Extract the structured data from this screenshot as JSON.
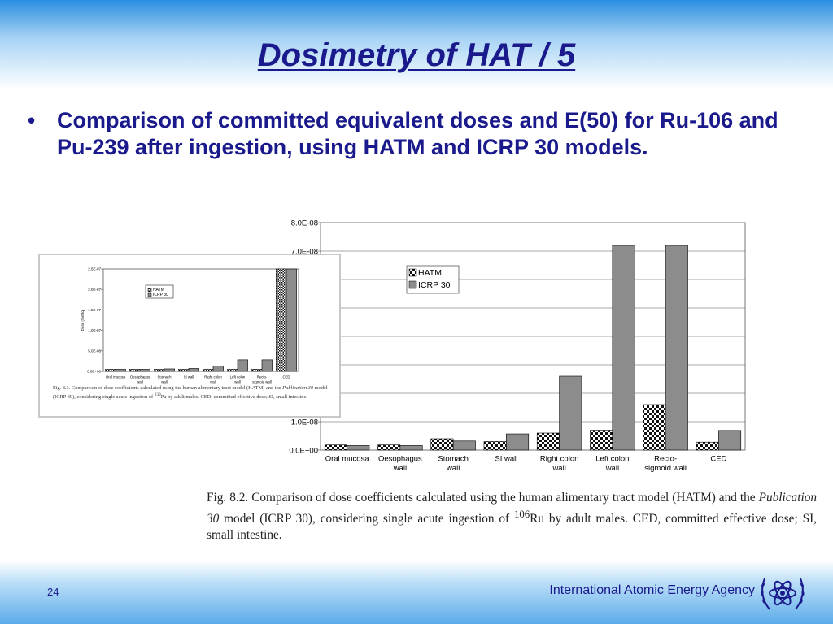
{
  "slide": {
    "title": "Dosimetry of HAT / 5",
    "bullet": "Comparison of committed equivalent doses and E(50) for Ru-106 and Pu-239 after ingestion, using HATM and ICRP 30 models.",
    "page_number": "24",
    "footer_org": "International Atomic Energy Agency",
    "logo_icon": "iaea-atom-wreath-icon"
  },
  "colors": {
    "title": "#1a1a8c",
    "icrp_bar": "#8c8c8c",
    "hatm_bar": "#222222",
    "footer_top": "#5cacea"
  },
  "chart_data": [
    {
      "type": "bar",
      "title": "",
      "xlabel": "",
      "ylabel": "",
      "ylim": [
        0,
        8e-08
      ],
      "grid": true,
      "legend_position": "top-center",
      "yticks": [
        "0.0E+00",
        "1.0E-08",
        "7.0E-08",
        "8.0E-08"
      ],
      "categories": [
        "Oral mucosa",
        "Oesophagus wall",
        "Stomach wall",
        "SI wall",
        "Right colon wall",
        "Left colon wall",
        "Recto-sigmoid wall",
        "CED"
      ],
      "series": [
        {
          "name": "HATM",
          "values": [
            1.8e-09,
            1.8e-09,
            4e-09,
            3e-09,
            6e-09,
            7e-09,
            1.6e-08,
            2.8e-09
          ]
        },
        {
          "name": "ICRP 30",
          "values": [
            1.6e-09,
            1.6e-09,
            3.2e-09,
            5.7e-09,
            2.6e-08,
            7.2e-08,
            7.2e-08,
            6.9e-09
          ]
        }
      ],
      "caption_parts": [
        "Fig. 8.2.  Comparison of dose coefficients calculated using the human alimentary tract model (HATM) and the ",
        "Publication 30",
        " model (ICRP 30), considering single acute ingestion of ",
        "106",
        "Ru by adult males. CED, committed effective dose; SI, small intestine."
      ]
    },
    {
      "type": "bar",
      "title": "",
      "xlabel": "",
      "ylabel": "Dose (Sv/Bq)",
      "ylim": [
        0,
        2.5e-07
      ],
      "grid": false,
      "legend_position": "top-center",
      "yticks": [
        "0.0E+00",
        "5.0E-08",
        "1.0E-07",
        "1.5E-07",
        "2.0E-07",
        "2.5E-07"
      ],
      "categories": [
        "Oral mucosa",
        "Oesophagus wall",
        "Stomach wall",
        "SI wall",
        "Right colon wall",
        "Left colon wall",
        "Recto-sigmoid wall",
        "CED"
      ],
      "series": [
        {
          "name": "HATM",
          "values": [
            5e-09,
            5e-09,
            5e-09,
            5e-09,
            5e-09,
            5e-09,
            5e-09,
            2.5e-07
          ]
        },
        {
          "name": "ICRP 30",
          "values": [
            5e-09,
            5e-09,
            6e-09,
            7e-09,
            1.3e-08,
            2.8e-08,
            2.8e-08,
            2.5e-07
          ]
        }
      ],
      "caption_parts": [
        "Fig. 8.3.  Comparison of dose coefficients calculated using the human alimentary tract model (HATM) and the ",
        "Publication 30",
        " model (ICRP 30), considering single acute ingestion of ",
        "239",
        "Pu by adult males. CED, committed effective dose; SI, small intestine."
      ]
    }
  ]
}
